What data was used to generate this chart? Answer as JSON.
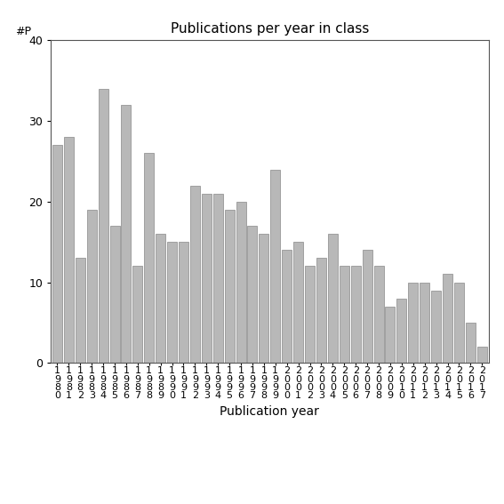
{
  "title": "Publications per year in class",
  "xlabel": "Publication year",
  "ylabel": "#P",
  "categories": [
    "1980",
    "1981",
    "1982",
    "1983",
    "1984",
    "1985",
    "1986",
    "1987",
    "1988",
    "1989",
    "1990",
    "1991",
    "1992",
    "1993",
    "1994",
    "1995",
    "1996",
    "1997",
    "1998",
    "1999",
    "2000",
    "2001",
    "2002",
    "2003",
    "2004",
    "2005",
    "2006",
    "2007",
    "2008",
    "2009",
    "2010",
    "2011",
    "2012",
    "2013",
    "2014",
    "2015",
    "2016",
    "2017"
  ],
  "values": [
    27,
    28,
    13,
    19,
    34,
    17,
    32,
    12,
    26,
    16,
    15,
    15,
    22,
    21,
    21,
    19,
    20,
    17,
    16,
    24,
    14,
    15,
    12,
    13,
    16,
    12,
    12,
    14,
    12,
    7,
    8,
    10,
    10,
    9,
    11,
    10,
    5,
    2
  ],
  "bar_color": "#b8b8b8",
  "bar_edgecolor": "#888888",
  "ylim": [
    0,
    40
  ],
  "yticks": [
    0,
    10,
    20,
    30,
    40
  ],
  "background_color": "#ffffff",
  "title_fontsize": 11,
  "axis_label_fontsize": 10,
  "tick_fontsize": 9,
  "ylabel_fontsize": 9
}
